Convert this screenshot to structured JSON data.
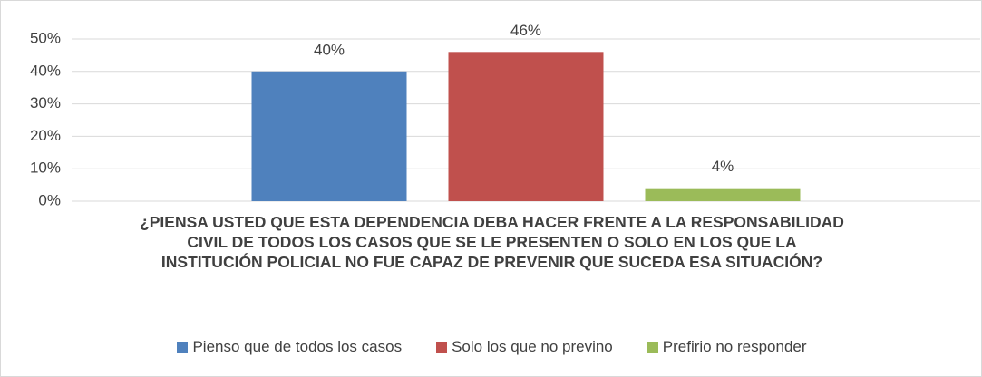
{
  "chart_data": {
    "type": "bar",
    "title": "¿PIENSA USTED QUE ESTA DEPENDENCIA DEBA HACER FRENTE A LA RESPONSABILIDAD CIVIL DE TODOS LOS CASOS QUE SE LE PRESENTEN O SOLO EN LOS QUE LA INSTITUCIÓN POLICIAL NO FUE CAPAZ DE PREVENIR QUE SUCEDA ESA SITUACIÓN?",
    "categories": [
      null
    ],
    "series": [
      {
        "name": "Pienso que de todos los casos",
        "color": "#4f81bd",
        "values": [
          40
        ],
        "value_labels": [
          "40%"
        ]
      },
      {
        "name": "Solo los que no previno",
        "color": "#c0504d",
        "values": [
          46
        ],
        "value_labels": [
          "46%"
        ]
      },
      {
        "name": "Prefirio no responder",
        "color": "#9bbb59",
        "values": [
          4
        ],
        "value_labels": [
          "4%"
        ]
      }
    ],
    "ylim": [
      0,
      50
    ],
    "yticks": [
      {
        "value": 0,
        "label": "0%"
      },
      {
        "value": 10,
        "label": "10%"
      },
      {
        "value": 20,
        "label": "20%"
      },
      {
        "value": 30,
        "label": "30%"
      },
      {
        "value": 40,
        "label": "40%"
      },
      {
        "value": 50,
        "label": "50%"
      }
    ],
    "grid": true,
    "legend": "bottom"
  }
}
